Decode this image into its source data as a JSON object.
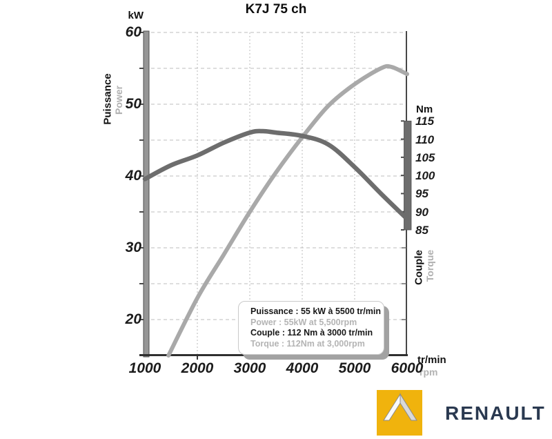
{
  "title": "K7J 75 ch",
  "colors": {
    "power_curve": "#a9a9a9",
    "torque_curve": "#6d6d6d",
    "grid": "#bdbdbd",
    "axis_dark": "#3a3a3a",
    "secondary_text_gray": "#b0b0b0",
    "renault_yellow": "#f0b30d",
    "renault_navy": "#2a3950"
  },
  "chart_data": {
    "type": "line",
    "title": "K7J 75 ch",
    "x_axis": {
      "unit_primary": "tr/min",
      "unit_secondary": "rpm",
      "min": 1000,
      "max": 6000,
      "ticks": [
        1000,
        2000,
        3000,
        4000,
        5000,
        6000
      ],
      "gridlines": [
        2000,
        3000,
        4000,
        5000
      ]
    },
    "y_left": {
      "unit": "kW",
      "name_fr": "Puissance",
      "name_en": "Power",
      "min": 15,
      "max": 60,
      "ticks": [
        20,
        30,
        40,
        50,
        60
      ],
      "gridlines": [
        20,
        25,
        30,
        35,
        40,
        45,
        50,
        55,
        60
      ]
    },
    "y_right": {
      "unit": "Nm",
      "name_fr": "Couple",
      "name_en": "Torque",
      "min": 85,
      "max": 115,
      "ticks": [
        85,
        90,
        95,
        100,
        105,
        110,
        115
      ]
    },
    "series": [
      {
        "name": "Power",
        "axis": "left",
        "color": "#a9a9a9",
        "points": [
          [
            1450,
            15
          ],
          [
            2000,
            23
          ],
          [
            2500,
            29
          ],
          [
            3000,
            35
          ],
          [
            3500,
            40.5
          ],
          [
            4000,
            45.4
          ],
          [
            4500,
            49.8
          ],
          [
            5000,
            52.8
          ],
          [
            5500,
            55
          ],
          [
            5700,
            55.2
          ],
          [
            6000,
            54.2
          ]
        ]
      },
      {
        "name": "Torque",
        "axis": "right",
        "color": "#6d6d6d",
        "points": [
          [
            1000,
            99
          ],
          [
            1500,
            102.8
          ],
          [
            2000,
            105.5
          ],
          [
            2500,
            109
          ],
          [
            3000,
            111.8
          ],
          [
            3250,
            112.2
          ],
          [
            3500,
            111.8
          ],
          [
            4000,
            110.9
          ],
          [
            4500,
            108.5
          ],
          [
            5000,
            102.3
          ],
          [
            5500,
            95
          ],
          [
            6000,
            88
          ]
        ]
      }
    ],
    "legend": {
      "position": "inside-bottom",
      "lines": [
        {
          "text": "Puissance : 55 kW à 5500 tr/min",
          "tone": "dark"
        },
        {
          "text": "Power : 55kW at 5,500rpm",
          "tone": "gray"
        },
        {
          "text": "Couple : 112 Nm à 3000 tr/min",
          "tone": "dark"
        },
        {
          "text": "Torque : 112Nm at 3,000rpm",
          "tone": "gray"
        }
      ]
    }
  },
  "logo": {
    "brand": "RENAULT"
  }
}
